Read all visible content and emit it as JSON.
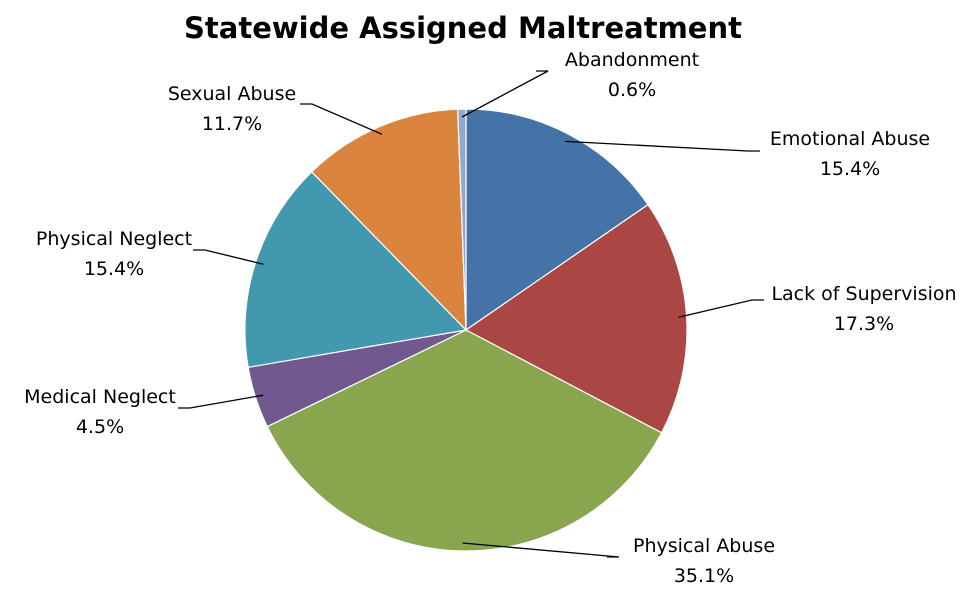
{
  "chart_data": {
    "type": "pie",
    "title": "Statewide Assigned Maltreatment",
    "slices": [
      {
        "name": "Emotional Abuse",
        "value": 15.4,
        "label": "15.4%",
        "color": "#4572A7"
      },
      {
        "name": "Lack of Supervision",
        "value": 17.3,
        "label": "17.3%",
        "color": "#AA4643"
      },
      {
        "name": "Physical Abuse",
        "value": 35.1,
        "label": "35.1%",
        "color": "#89A54E"
      },
      {
        "name": "Medical Neglect",
        "value": 4.5,
        "label": "4.5%",
        "color": "#71588F"
      },
      {
        "name": "Physical Neglect",
        "value": 15.4,
        "label": "15.4%",
        "color": "#4198AF"
      },
      {
        "name": "Sexual Abuse",
        "value": 11.7,
        "label": "11.7%",
        "color": "#DB843D"
      },
      {
        "name": "Abandonment",
        "value": 0.6,
        "label": "0.6%",
        "color": "#93A9CF"
      }
    ],
    "legend": "none",
    "data_labels": "outside-with-leaders"
  }
}
